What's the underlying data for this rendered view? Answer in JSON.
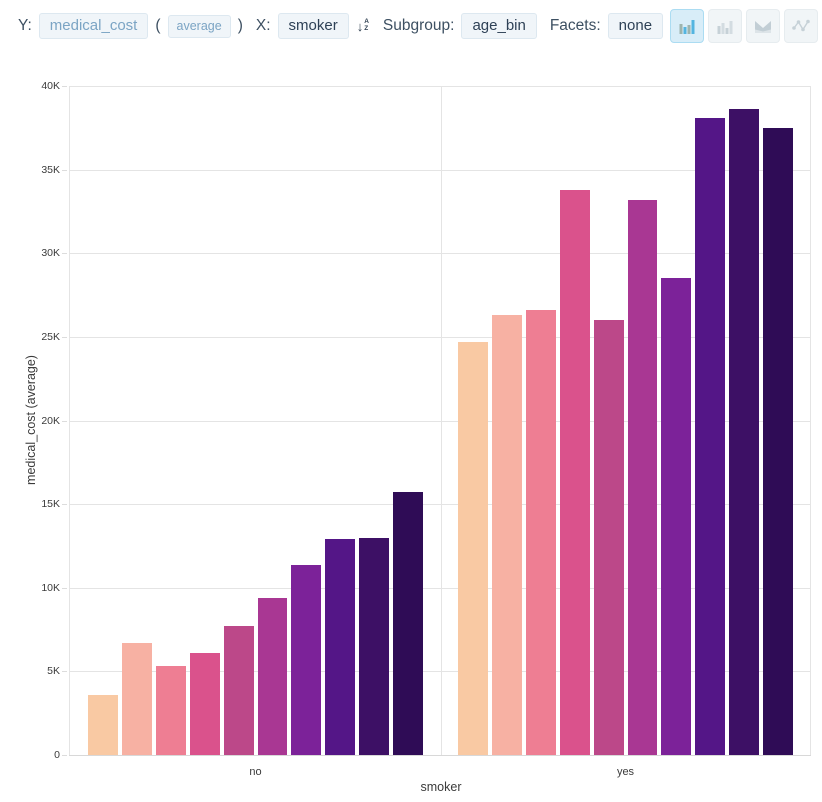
{
  "toolbar": {
    "y_label": "Y:",
    "y_field": "medical_cost",
    "paren_open": "(",
    "y_aggregation": "average",
    "paren_close": ")",
    "x_label": "X:",
    "x_field": "smoker",
    "subgroup_label": "Subgroup:",
    "subgroup_field": "age_bin",
    "facets_label": "Facets:",
    "facets_value": "none",
    "sort_icon": "sort-ascending-az-icon",
    "chart_type_buttons": [
      {
        "name": "grouped-bar-chart",
        "active": true
      },
      {
        "name": "stacked-bar-chart",
        "active": false
      },
      {
        "name": "area-chart",
        "active": false
      },
      {
        "name": "line-scatter-chart",
        "active": false
      }
    ]
  },
  "colors": {
    "accent_blue": "#53b5e0",
    "icon_gray": "#c6d1d7",
    "icon_slate": "#9db4ae",
    "chip_text_muted": "#7ba4c4",
    "chip_text_dark": "#2e4156",
    "chip_bg": "#f0f5f9",
    "chip_border": "#dde8f0",
    "active_button_bg": "#d8edf8",
    "active_button_border": "#abdcf2",
    "gridline": "#e4e4e4",
    "axis_line": "#d8d8d8",
    "tick_text": "#3b3b3b"
  },
  "chart_data": {
    "type": "bar",
    "title": "",
    "xlabel": "smoker",
    "ylabel": "medical_cost (average)",
    "categories": [
      "no",
      "yes"
    ],
    "subgroup_field": "age_bin",
    "legend_position": "none",
    "grid": true,
    "ylim": [
      0,
      40000
    ],
    "yticks": [
      {
        "value": 0,
        "label": "0"
      },
      {
        "value": 5000,
        "label": "5K"
      },
      {
        "value": 10000,
        "label": "10K"
      },
      {
        "value": 15000,
        "label": "15K"
      },
      {
        "value": 20000,
        "label": "20K"
      },
      {
        "value": 25000,
        "label": "25K"
      },
      {
        "value": 30000,
        "label": "30K"
      },
      {
        "value": 35000,
        "label": "35K"
      },
      {
        "value": 40000,
        "label": "40K"
      }
    ],
    "palette": [
      "#f9c9a3",
      "#f7b1a3",
      "#ee7e93",
      "#da528c",
      "#bc4889",
      "#a93793",
      "#7c2299",
      "#541687",
      "#3d1065",
      "#2f0c56"
    ],
    "series": [
      {
        "category": "no",
        "values": [
          3600,
          6700,
          5300,
          6100,
          7700,
          9400,
          11350,
          12900,
          13000,
          15700
        ]
      },
      {
        "category": "yes",
        "values": [
          24700,
          26300,
          26600,
          33800,
          26000,
          33200,
          28500,
          38100,
          38600,
          37500
        ]
      }
    ]
  }
}
